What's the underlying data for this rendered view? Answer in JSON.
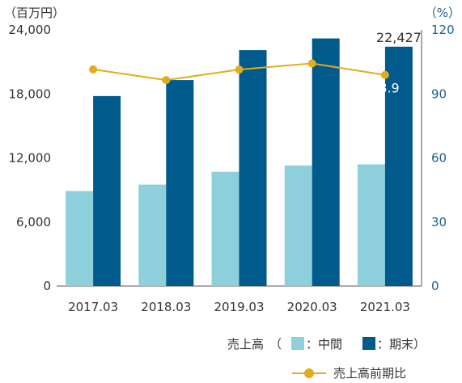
{
  "chart_data": {
    "type": "bar",
    "left_unit": "（百万円）",
    "right_unit": "（%）",
    "categories": [
      "2017.03",
      "2018.03",
      "2019.03",
      "2020.03",
      "2021.03"
    ],
    "left_axis": {
      "ylim": [
        0,
        24000
      ],
      "ticks": [
        "0",
        "6,000",
        "12,000",
        "18,000",
        "24,000"
      ],
      "tick_values": [
        0,
        6000,
        12000,
        18000,
        24000
      ]
    },
    "right_axis": {
      "ylim": [
        0,
        120
      ],
      "ticks": [
        "0",
        "30",
        "60",
        "90",
        "120"
      ],
      "tick_values": [
        0,
        30,
        60,
        90,
        120
      ]
    },
    "series": [
      {
        "name": "中間",
        "type": "bar",
        "axis": "left",
        "color": "#8dd0dc",
        "values": [
          8900,
          9500,
          10700,
          11300,
          11400
        ]
      },
      {
        "name": "期末",
        "type": "bar",
        "axis": "left",
        "color": "#005a8c",
        "values": [
          17800,
          19300,
          22100,
          23200,
          22427
        ]
      },
      {
        "name": "売上高前期比",
        "type": "line",
        "axis": "right",
        "color": "#e0ad1c",
        "values": [
          101.5,
          96.5,
          101.4,
          104.3,
          98.9
        ]
      }
    ],
    "annotations": [
      {
        "label": "22,427",
        "series": "期末",
        "category": "2021.03"
      },
      {
        "label": "98.9",
        "series": "売上高前期比",
        "category": "2021.03"
      }
    ],
    "legend": {
      "bar_group_label": "売上高",
      "open_paren": "（",
      "interim_label": "：中間",
      "yearend_label": "：期末）",
      "line_label": "売上高前期比",
      "placement": "bottom-right"
    },
    "grid": false
  }
}
